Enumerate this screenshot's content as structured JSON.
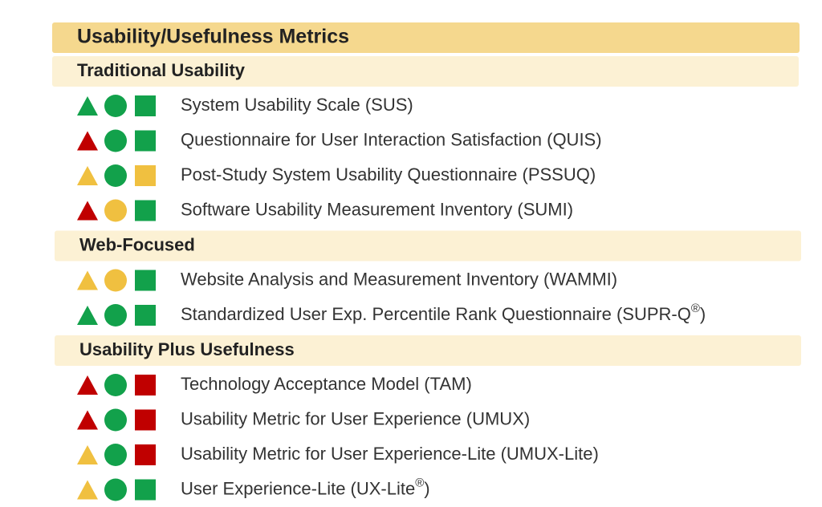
{
  "header": {
    "title": "Usability/Usefulness Metrics"
  },
  "sections": [
    {
      "title": "Traditional Usability",
      "items": [
        {
          "label": "System Usability Scale (SUS)",
          "marks": [
            "#12a14b",
            "#12a14b",
            "#12a14b"
          ]
        },
        {
          "label": "Questionnaire for User Interaction Satisfaction (QUIS)",
          "marks": [
            "#c00000",
            "#12a14b",
            "#12a14b"
          ]
        },
        {
          "label": "Post-Study System Usability Questionnaire (PSSUQ)",
          "marks": [
            "#f0c040",
            "#12a14b",
            "#f0c040"
          ]
        },
        {
          "label": "Software Usability Measurement Inventory (SUMI)",
          "marks": [
            "#c00000",
            "#f0c040",
            "#12a14b"
          ]
        }
      ]
    },
    {
      "title": "Web-Focused",
      "items": [
        {
          "label": "Website Analysis and Measurement Inventory (WAMMI)",
          "marks": [
            "#f0c040",
            "#f0c040",
            "#12a14b"
          ]
        },
        {
          "label": "Standardized User Exp. Percentile Rank Questionnaire (SUPR-Q",
          "sup": "®",
          "tail": ")",
          "marks": [
            "#12a14b",
            "#12a14b",
            "#12a14b"
          ]
        }
      ]
    },
    {
      "title": "Usability Plus Usefulness",
      "items": [
        {
          "label": "Technology Acceptance Model (TAM)",
          "marks": [
            "#c00000",
            "#12a14b",
            "#c00000"
          ]
        },
        {
          "label": "Usability Metric for User Experience (UMUX)",
          "marks": [
            "#c00000",
            "#12a14b",
            "#c00000"
          ]
        },
        {
          "label": "Usability Metric for User Experience-Lite (UMUX-Lite)",
          "marks": [
            "#f0c040",
            "#12a14b",
            "#c00000"
          ]
        },
        {
          "label": "User Experience-Lite (UX-Lite",
          "sup": "®",
          "tail": ")",
          "marks": [
            "#f0c040",
            "#12a14b",
            "#12a14b"
          ]
        }
      ]
    }
  ]
}
